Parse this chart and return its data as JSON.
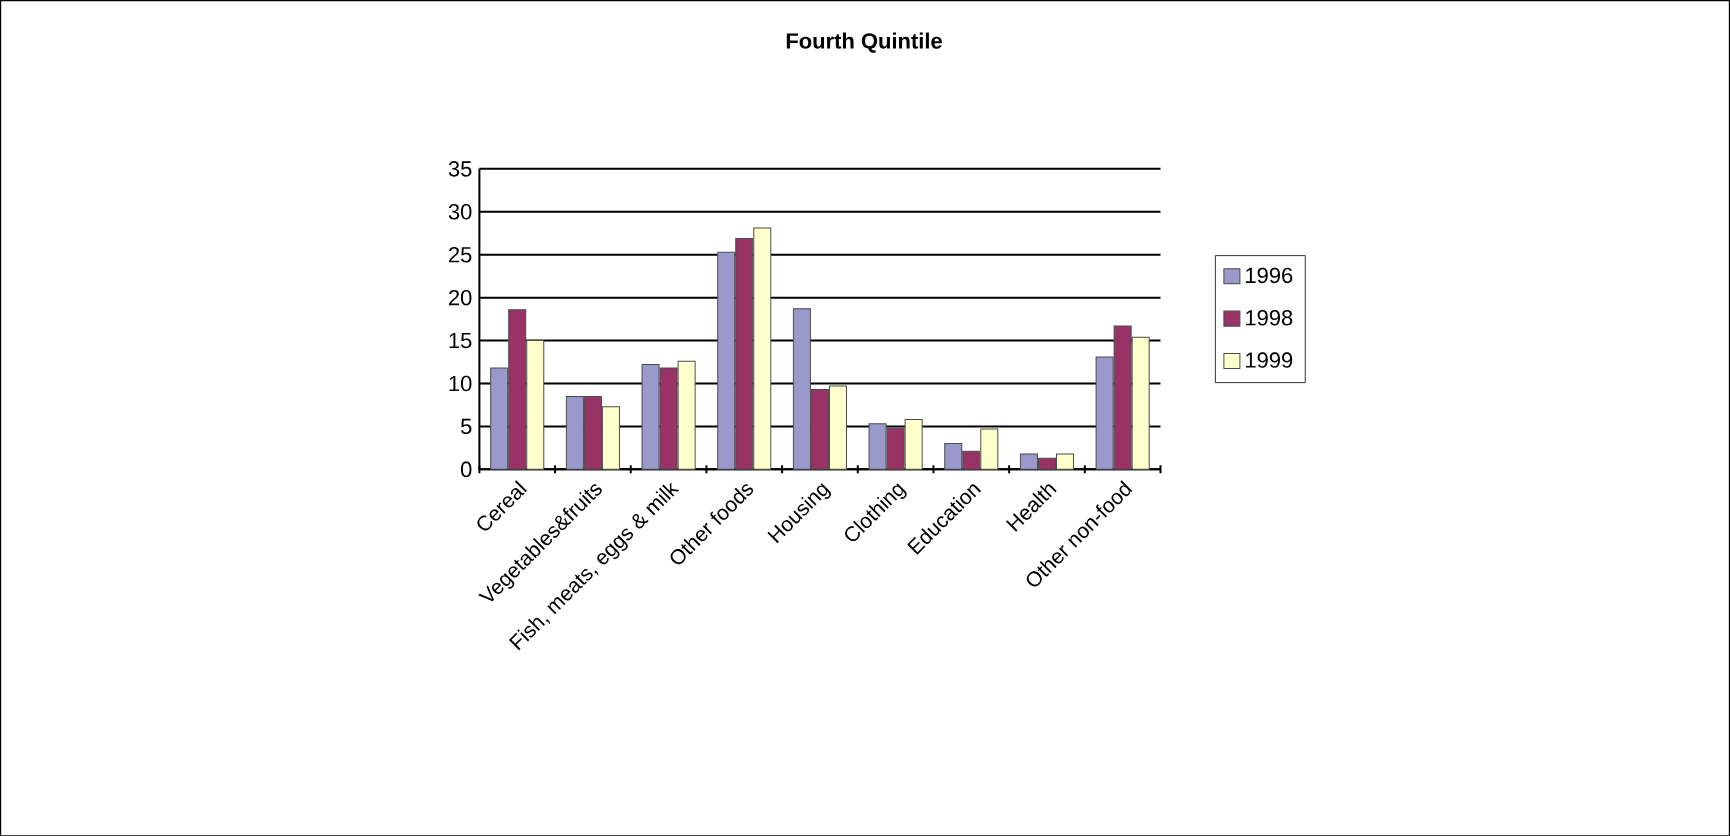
{
  "chart_data": {
    "type": "bar",
    "title": "Fourth Quintile",
    "categories": [
      "Cereal",
      "Vegetables&fruits",
      "Fish, meats, eggs & milk",
      "Other foods",
      "Housing",
      "Clothing",
      "Education",
      "Health",
      "Other non-food"
    ],
    "series": [
      {
        "name": "1996",
        "color": "#9999cc",
        "values": [
          11.8,
          8.5,
          12.2,
          25.3,
          18.7,
          5.3,
          3.0,
          1.8,
          13.1
        ]
      },
      {
        "name": "1998",
        "color": "#993366",
        "values": [
          18.6,
          8.5,
          11.8,
          26.9,
          9.3,
          4.8,
          2.1,
          1.3,
          16.7
        ]
      },
      {
        "name": "1999",
        "color": "#ffffcc",
        "values": [
          15.0,
          7.3,
          12.6,
          28.1,
          9.7,
          5.8,
          4.7,
          1.8,
          15.4
        ]
      }
    ],
    "ylim": [
      0,
      35
    ],
    "yticks": [
      0,
      5,
      10,
      15,
      20,
      25,
      30,
      35
    ],
    "grid": "y",
    "legend": "right"
  }
}
